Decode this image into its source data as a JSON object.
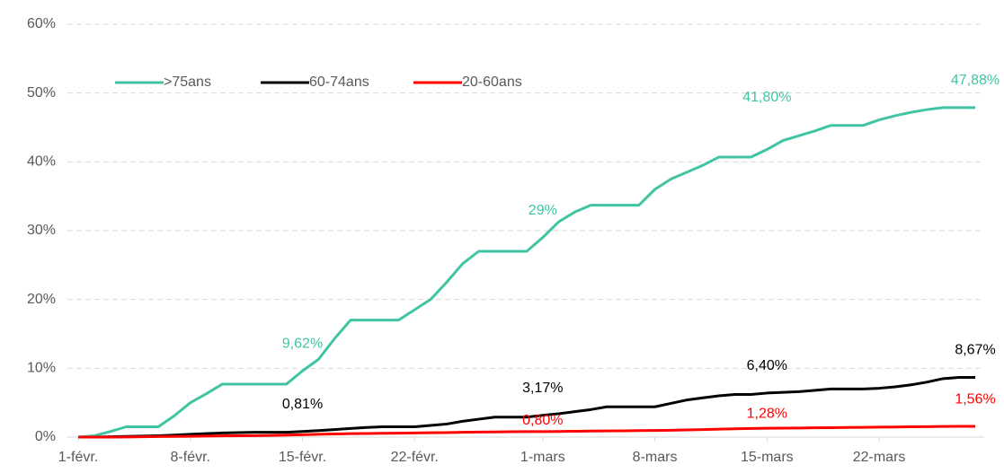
{
  "chart_data": {
    "type": "line",
    "categories": [
      "1-févr.",
      null,
      null,
      null,
      null,
      null,
      null,
      "8-févr.",
      null,
      null,
      null,
      null,
      null,
      null,
      "15-févr.",
      null,
      null,
      null,
      null,
      null,
      null,
      "22-févr.",
      null,
      null,
      null,
      null,
      null,
      null,
      null,
      "1-mars",
      null,
      null,
      null,
      null,
      null,
      null,
      "8-mars",
      null,
      null,
      null,
      null,
      null,
      null,
      "15-mars",
      null,
      null,
      null,
      null,
      null,
      null,
      "22-mars",
      null,
      null,
      null,
      null,
      null,
      null
    ],
    "series": [
      {
        "name": ">75ans",
        "color": "#40c4a3",
        "values": [
          0,
          0.2,
          0.8,
          1.5,
          1.5,
          1.5,
          3.1,
          5.0,
          6.3,
          7.7,
          7.7,
          7.7,
          7.7,
          7.7,
          9.62,
          11.3,
          14.3,
          17.0,
          17.0,
          17.0,
          17.0,
          18.5,
          20.0,
          22.5,
          25.2,
          27.0,
          27.0,
          27.0,
          27.0,
          29,
          31.3,
          32.7,
          33.7,
          33.7,
          33.7,
          33.7,
          36.0,
          37.5,
          38.5,
          39.5,
          40.7,
          40.7,
          40.7,
          41.8,
          43.1,
          43.8,
          44.5,
          45.3,
          45.3,
          45.3,
          46.1,
          46.7,
          47.2,
          47.6,
          47.88,
          47.88,
          47.88
        ],
        "value_labels": [
          null,
          null,
          null,
          null,
          null,
          null,
          null,
          null,
          null,
          null,
          null,
          null,
          null,
          null,
          "9,62%",
          null,
          null,
          null,
          null,
          null,
          null,
          null,
          null,
          null,
          null,
          null,
          null,
          null,
          null,
          "29%",
          null,
          null,
          null,
          null,
          null,
          null,
          null,
          null,
          null,
          null,
          null,
          null,
          null,
          "41,80%",
          null,
          null,
          null,
          null,
          null,
          null,
          null,
          null,
          null,
          null,
          null,
          null,
          "47,88%"
        ]
      },
      {
        "name": "60-74ans",
        "color": "#000000",
        "values": [
          0,
          0,
          0.05,
          0.1,
          0.15,
          0.2,
          0.3,
          0.4,
          0.5,
          0.6,
          0.65,
          0.7,
          0.7,
          0.7,
          0.81,
          0.95,
          1.1,
          1.25,
          1.4,
          1.5,
          1.5,
          1.5,
          1.7,
          1.9,
          2.3,
          2.6,
          2.9,
          2.9,
          2.9,
          3.17,
          3.4,
          3.7,
          4.0,
          4.4,
          4.4,
          4.4,
          4.4,
          4.9,
          5.4,
          5.7,
          6.0,
          6.2,
          6.2,
          6.4,
          6.5,
          6.6,
          6.8,
          7.0,
          7.0,
          7.0,
          7.1,
          7.3,
          7.6,
          8.0,
          8.5,
          8.67,
          8.67
        ],
        "value_labels": [
          null,
          null,
          null,
          null,
          null,
          null,
          null,
          null,
          null,
          null,
          null,
          null,
          null,
          null,
          "0,81%",
          null,
          null,
          null,
          null,
          null,
          null,
          null,
          null,
          null,
          null,
          null,
          null,
          null,
          null,
          "3,17%",
          null,
          null,
          null,
          null,
          null,
          null,
          null,
          null,
          null,
          null,
          null,
          null,
          null,
          "6,40%",
          null,
          null,
          null,
          null,
          null,
          null,
          null,
          null,
          null,
          null,
          null,
          null,
          "8,67%"
        ]
      },
      {
        "name": "20-60ans",
        "color": "#ff0000",
        "values": [
          0,
          0,
          0,
          0.02,
          0.05,
          0.08,
          0.1,
          0.12,
          0.15,
          0.18,
          0.2,
          0.22,
          0.25,
          0.3,
          0.35,
          0.4,
          0.45,
          0.5,
          0.52,
          0.55,
          0.57,
          0.6,
          0.63,
          0.66,
          0.7,
          0.73,
          0.75,
          0.78,
          0.8,
          0.8,
          0.82,
          0.85,
          0.88,
          0.9,
          0.92,
          0.95,
          0.97,
          1.0,
          1.05,
          1.1,
          1.15,
          1.2,
          1.25,
          1.28,
          1.3,
          1.32,
          1.35,
          1.37,
          1.4,
          1.42,
          1.45,
          1.47,
          1.5,
          1.52,
          1.55,
          1.56,
          1.56
        ],
        "value_labels": [
          null,
          null,
          null,
          null,
          null,
          null,
          null,
          null,
          null,
          null,
          null,
          null,
          null,
          null,
          null,
          null,
          null,
          null,
          null,
          null,
          null,
          null,
          null,
          null,
          null,
          null,
          null,
          null,
          null,
          "0,80%",
          null,
          null,
          null,
          null,
          null,
          null,
          null,
          null,
          null,
          null,
          null,
          null,
          null,
          "1,28%",
          null,
          null,
          null,
          null,
          null,
          null,
          null,
          null,
          null,
          null,
          null,
          null,
          "1,56%"
        ]
      }
    ],
    "ylim": [
      0,
      60
    ],
    "yticks": [
      {
        "value": 0,
        "label": "0%"
      },
      {
        "value": 10,
        "label": "10%"
      },
      {
        "value": 20,
        "label": "20%"
      },
      {
        "value": 30,
        "label": "30%"
      },
      {
        "value": 40,
        "label": "40%"
      },
      {
        "value": 50,
        "label": "50%"
      },
      {
        "value": 60,
        "label": "60%"
      }
    ],
    "grid": true
  }
}
